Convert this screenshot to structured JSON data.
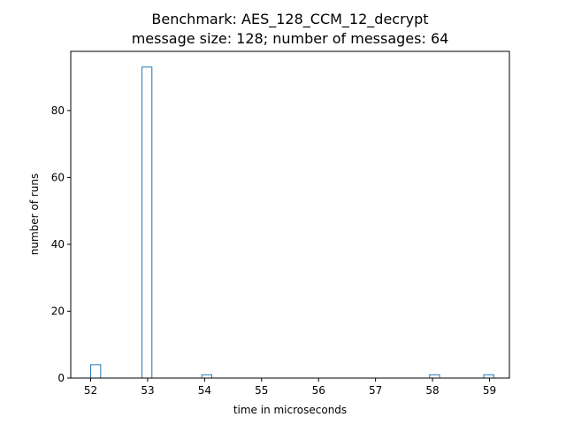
{
  "chart_data": {
    "type": "bar",
    "title": "Benchmark: AES_128_CCM_12_decrypt",
    "subtitle": "message size: 128; number of messages: 64",
    "xlabel": "time in microseconds",
    "ylabel": "number of runs",
    "xlim": [
      51.65,
      59.35
    ],
    "ylim": [
      0,
      97.7
    ],
    "xticks": [
      52,
      53,
      54,
      55,
      56,
      57,
      58,
      59
    ],
    "yticks": [
      0,
      20,
      40,
      60,
      80
    ],
    "bar_width": 0.175,
    "bars": [
      {
        "x": 52.0,
        "value": 4
      },
      {
        "x": 52.9,
        "value": 93
      },
      {
        "x": 53.95,
        "value": 1
      },
      {
        "x": 57.95,
        "value": 1
      },
      {
        "x": 58.9,
        "value": 1
      }
    ],
    "grid": false,
    "bar_color": "#1f77b4"
  }
}
